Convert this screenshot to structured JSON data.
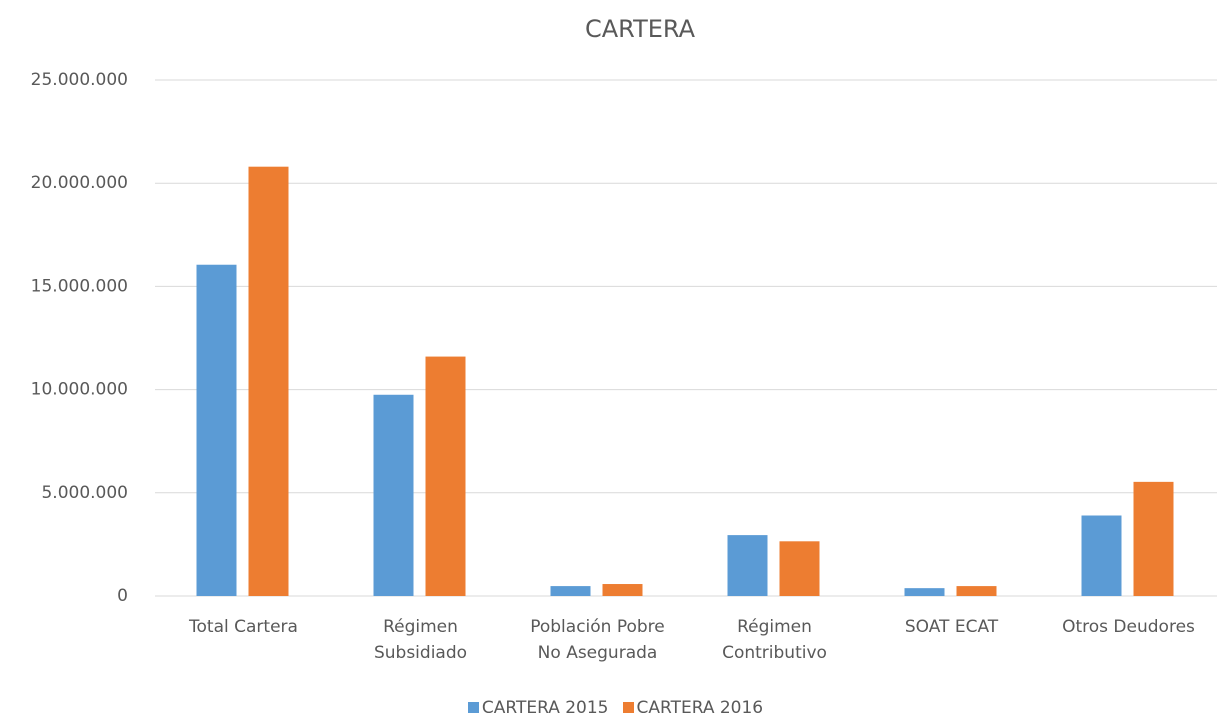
{
  "chart_data": {
    "type": "bar",
    "title": "CARTERA",
    "categories": [
      "Total Cartera",
      "Régimen Subsidiado",
      "Población Pobre No Asegurada",
      "Régimen Contributivo",
      "SOAT ECAT",
      "Otros Deudores"
    ],
    "series": [
      {
        "name": "CARTERA 2015",
        "color": "#5b9bd5",
        "values": [
          16050000,
          9750000,
          480000,
          2950000,
          380000,
          3900000
        ]
      },
      {
        "name": "CARTERA 2016",
        "color": "#ed7d31",
        "values": [
          20800000,
          11600000,
          580000,
          2650000,
          480000,
          5530000
        ]
      }
    ],
    "ylim": [
      0,
      25000000
    ],
    "yticks": [
      0,
      {
        "value": 5000000,
        "label": "5.000.000"
      },
      {
        "value": 10000000,
        "label": "10.000.000"
      },
      {
        "value": 15000000,
        "label": "15.000.000"
      },
      {
        "value": 20000000,
        "label": "20.000.000"
      },
      {
        "value": 25000000,
        "label": "25.000.000"
      }
    ],
    "grid": true,
    "legend": "bottom"
  }
}
